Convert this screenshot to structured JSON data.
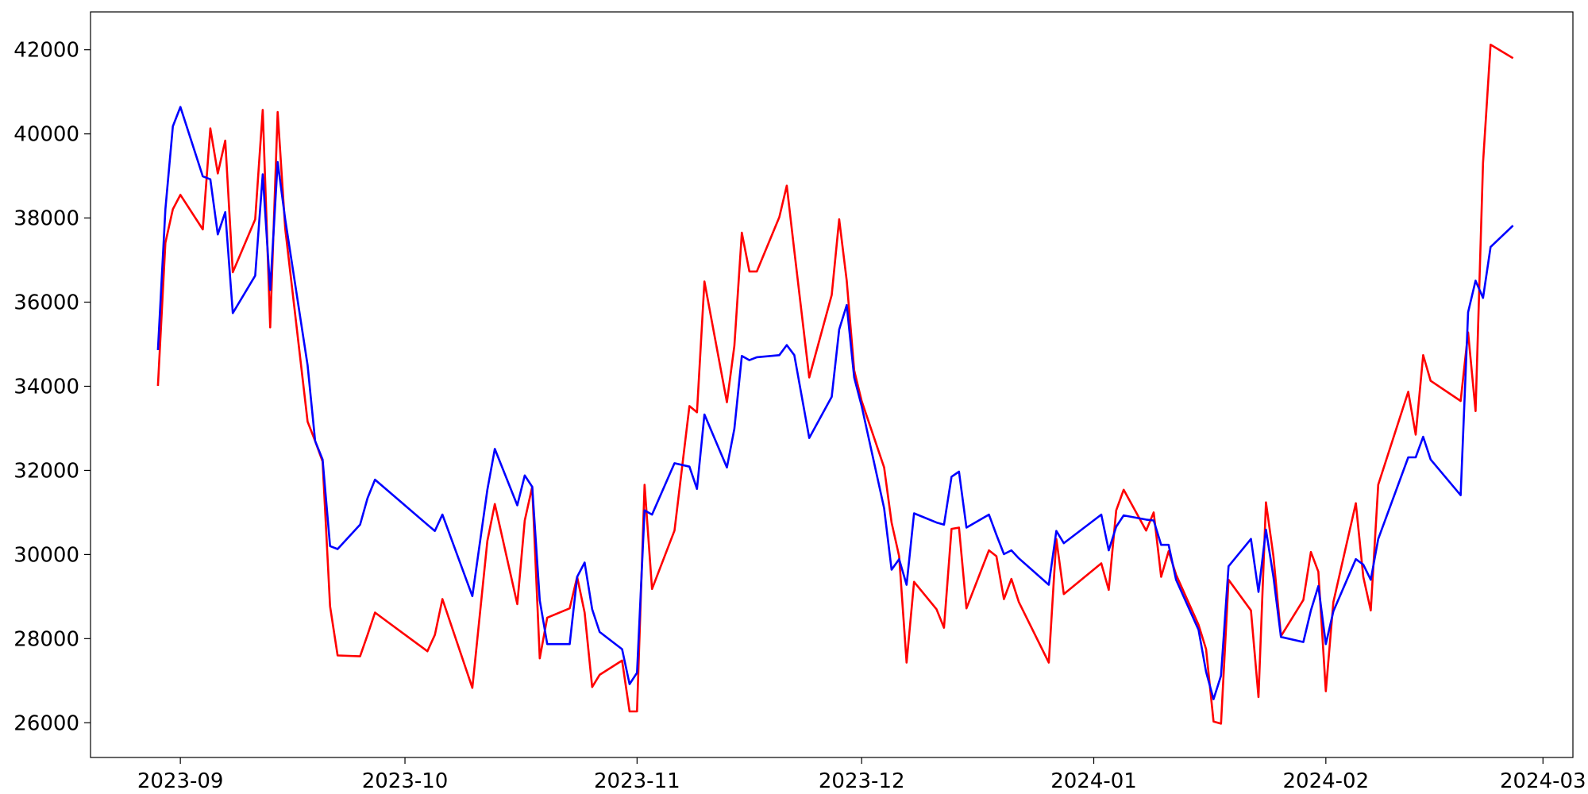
{
  "chart_data": {
    "type": "line",
    "x": [
      "2023-08-29",
      "2023-08-30",
      "2023-08-31",
      "2023-09-01",
      "2023-09-04",
      "2023-09-05",
      "2023-09-06",
      "2023-09-07",
      "2023-09-08",
      "2023-09-11",
      "2023-09-12",
      "2023-09-13",
      "2023-09-14",
      "2023-09-15",
      "2023-09-18",
      "2023-09-19",
      "2023-09-20",
      "2023-09-21",
      "2023-09-22",
      "2023-09-25",
      "2023-09-26",
      "2023-09-27",
      "2023-10-04",
      "2023-10-05",
      "2023-10-06",
      "2023-10-10",
      "2023-10-12",
      "2023-10-13",
      "2023-10-16",
      "2023-10-17",
      "2023-10-18",
      "2023-10-19",
      "2023-10-20",
      "2023-10-23",
      "2023-10-24",
      "2023-10-25",
      "2023-10-26",
      "2023-10-27",
      "2023-10-30",
      "2023-10-31",
      "2023-11-01",
      "2023-11-02",
      "2023-11-03",
      "2023-11-06",
      "2023-11-08",
      "2023-11-09",
      "2023-11-10",
      "2023-11-13",
      "2023-11-14",
      "2023-11-15",
      "2023-11-16",
      "2023-11-17",
      "2023-11-20",
      "2023-11-21",
      "2023-11-22",
      "2023-11-24",
      "2023-11-27",
      "2023-11-28",
      "2023-11-29",
      "2023-11-30",
      "2023-12-01",
      "2023-12-04",
      "2023-12-05",
      "2023-12-06",
      "2023-12-07",
      "2023-12-08",
      "2023-12-11",
      "2023-12-12",
      "2023-12-13",
      "2023-12-14",
      "2023-12-15",
      "2023-12-18",
      "2023-12-19",
      "2023-12-20",
      "2023-12-21",
      "2023-12-22",
      "2023-12-26",
      "2023-12-27",
      "2023-12-28",
      "2024-01-02",
      "2024-01-03",
      "2024-01-04",
      "2024-01-05",
      "2024-01-08",
      "2024-01-09",
      "2024-01-10",
      "2024-01-11",
      "2024-01-12",
      "2024-01-15",
      "2024-01-16",
      "2024-01-17",
      "2024-01-18",
      "2024-01-19",
      "2024-01-22",
      "2024-01-23",
      "2024-01-24",
      "2024-01-25",
      "2024-01-26",
      "2024-01-29",
      "2024-01-30",
      "2024-01-31",
      "2024-02-01",
      "2024-02-02",
      "2024-02-05",
      "2024-02-06",
      "2024-02-07",
      "2024-02-08",
      "2024-02-12",
      "2024-02-13",
      "2024-02-14",
      "2024-02-15",
      "2024-02-19",
      "2024-02-20",
      "2024-02-21",
      "2024-02-22",
      "2024-02-23",
      "2024-02-26"
    ],
    "series": [
      {
        "color": "#ff0000",
        "values": [
          34010,
          37410,
          38210,
          38550,
          37730,
          40130,
          39060,
          39840,
          36710,
          37970,
          40570,
          35400,
          40520,
          37750,
          33160,
          32700,
          32210,
          28770,
          27600,
          27580,
          28090,
          28620,
          27700,
          28090,
          28940,
          26830,
          30320,
          31200,
          28820,
          30810,
          31610,
          27530,
          28500,
          28720,
          29470,
          28620,
          26850,
          27140,
          27480,
          26270,
          26270,
          31660,
          29180,
          30570,
          33530,
          33380,
          36490,
          33620,
          34960,
          37650,
          36730,
          36730,
          38020,
          38770,
          37220,
          34210,
          36170,
          37970,
          36510,
          34380,
          33650,
          32070,
          30760,
          29960,
          27430,
          29350,
          28700,
          28260,
          30610,
          30640,
          28720,
          30100,
          29960,
          28940,
          29420,
          28870,
          27430,
          30370,
          29060,
          29790,
          29160,
          31050,
          31540,
          30570,
          31000,
          29470,
          30080,
          29520,
          28330,
          27750,
          26030,
          25980,
          29400,
          28670,
          26610,
          31240,
          29960,
          28060,
          28920,
          30060,
          29590,
          26750,
          28870,
          31220,
          29470,
          28670,
          31660,
          33870,
          32850,
          34740,
          34130,
          33650,
          35280,
          33410,
          39310,
          42120,
          41800
        ]
      },
      {
        "color": "#0000ff",
        "values": [
          34860,
          38210,
          40180,
          40640,
          38990,
          38920,
          37610,
          38140,
          35740,
          36630,
          39040,
          36290,
          39330,
          37970,
          34500,
          32700,
          32260,
          30200,
          30130,
          30710,
          31340,
          31780,
          30710,
          30560,
          30950,
          29010,
          31540,
          32510,
          31170,
          31880,
          31610,
          28910,
          27870,
          27870,
          29470,
          29810,
          28700,
          28160,
          27750,
          26920,
          27190,
          31050,
          30950,
          32170,
          32090,
          31560,
          33330,
          32070,
          32990,
          34720,
          34620,
          34690,
          34740,
          34980,
          34740,
          32770,
          33750,
          35350,
          35930,
          34210,
          33530,
          31100,
          29640,
          29890,
          29280,
          30980,
          30760,
          30710,
          31850,
          31970,
          30640,
          30950,
          30470,
          30010,
          30100,
          29910,
          29280,
          30560,
          30270,
          30950,
          30100,
          30660,
          30930,
          30830,
          30810,
          30230,
          30230,
          29400,
          28210,
          27210,
          26560,
          27120,
          29720,
          30370,
          29110,
          30590,
          29470,
          28040,
          27920,
          28670,
          29250,
          27870,
          28650,
          29890,
          29760,
          29400,
          30370,
          32310,
          32310,
          32800,
          32260,
          31410,
          35760,
          36510,
          36100,
          37310,
          37820
        ]
      }
    ],
    "xlim": [
      "2023-08-20",
      "2024-03-05"
    ],
    "xticks": [
      {
        "value": "2023-09-01",
        "label": "2023-09"
      },
      {
        "value": "2023-10-01",
        "label": "2023-10"
      },
      {
        "value": "2023-11-01",
        "label": "2023-11"
      },
      {
        "value": "2023-12-01",
        "label": "2023-12"
      },
      {
        "value": "2024-01-01",
        "label": "2024-01"
      },
      {
        "value": "2024-02-01",
        "label": "2024-02"
      },
      {
        "value": "2024-03-01",
        "label": "2024-03"
      }
    ],
    "ylim": [
      25175,
      42900
    ],
    "yticks": [
      26000,
      28000,
      30000,
      32000,
      34000,
      36000,
      38000,
      40000,
      42000
    ],
    "grid": false
  }
}
